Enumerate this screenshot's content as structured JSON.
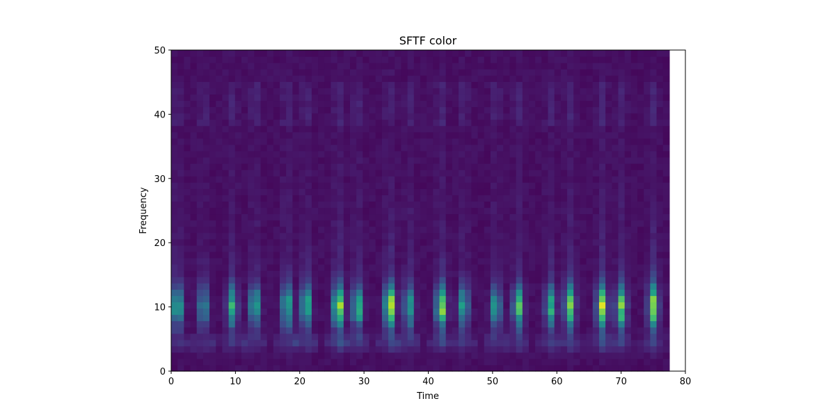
{
  "chart_data": {
    "type": "heatmap",
    "title": "SFTF color",
    "xlabel": "Time",
    "ylabel": "Frequency",
    "xlim": [
      0,
      80
    ],
    "ylim": [
      0,
      50
    ],
    "x_ticks": [
      0,
      10,
      20,
      30,
      40,
      50,
      60,
      70,
      80
    ],
    "y_ticks": [
      0,
      10,
      20,
      30,
      40,
      50
    ],
    "x_extent": [
      0,
      77.5
    ],
    "time_bins": 78,
    "frequency_bins": 51,
    "colormap": "viridis",
    "grid": false,
    "legend": "none",
    "burst_times": [
      1,
      5,
      9.5,
      13,
      18,
      21,
      26,
      29,
      34,
      37,
      42,
      45.5,
      50.5,
      54,
      59,
      62,
      67,
      70,
      75
    ],
    "burst_peak_intensity": [
      0.65,
      0.5,
      0.6,
      0.6,
      0.7,
      0.7,
      0.95,
      0.7,
      0.95,
      0.6,
      0.85,
      0.55,
      0.55,
      0.7,
      0.6,
      0.75,
      0.9,
      0.75,
      0.85
    ],
    "dominant_frequency_band": [
      7,
      13
    ]
  }
}
